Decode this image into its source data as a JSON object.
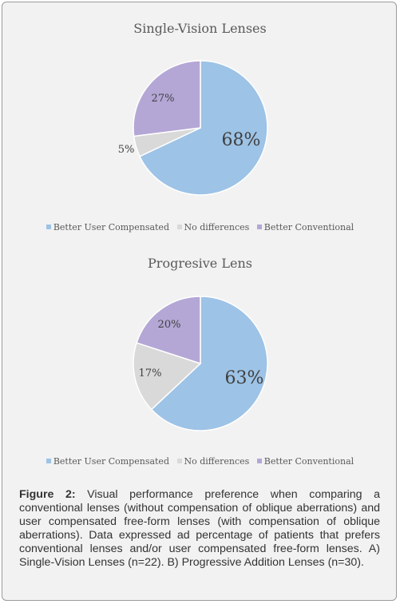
{
  "chart_data": [
    {
      "type": "pie",
      "title": "Single-Vision Lenses",
      "legend_position": "bottom",
      "series": [
        {
          "name": "Better User Compensated",
          "value": 68,
          "label": "68%",
          "color": "#9dc3e6"
        },
        {
          "name": "No differences",
          "value": 5,
          "label": "5%",
          "color": "#d9d9d9"
        },
        {
          "name": "Better Conventional",
          "value": 27,
          "label": "27%",
          "color": "#b4a7d6"
        }
      ]
    },
    {
      "type": "pie",
      "title": "Progresive Lens",
      "legend_position": "bottom",
      "series": [
        {
          "name": "Better User Compensated",
          "value": 63,
          "label": "63%",
          "color": "#9dc3e6"
        },
        {
          "name": "No differences",
          "value": 17,
          "label": "17%",
          "color": "#d9d9d9"
        },
        {
          "name": "Better Conventional",
          "value": 20,
          "label": "20%",
          "color": "#b4a7d6"
        }
      ]
    }
  ],
  "caption": {
    "label": "Figure 2:",
    "text": " Visual performance preference when comparing a conventional lenses (without compensation of oblique aberrations) and user compensated free-form lenses (with compensation of oblique aberrations). Data expressed ad percentage of patients that prefers conventional lenses and/or user compensated free-form lenses. A) Single-Vision Lenses (n=22). B) Progressive Addition Lenses (n=30)."
  }
}
